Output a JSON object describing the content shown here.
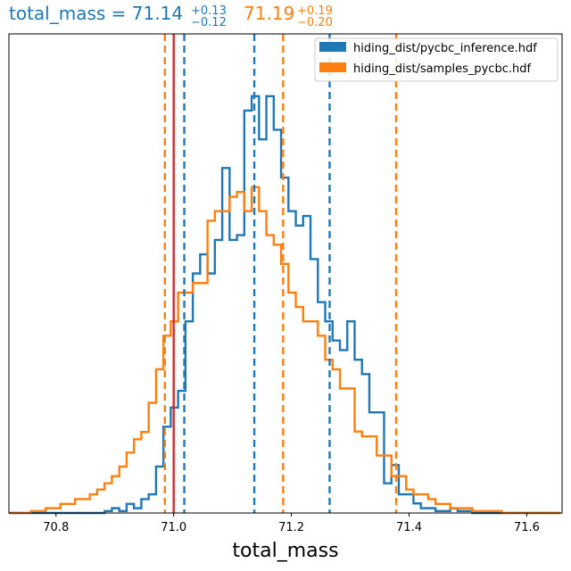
{
  "chart_data": {
    "type": "step-histogram",
    "title": {
      "series1": {
        "text": "total_mass = 71.14",
        "plus": "+0.13",
        "minus": "−0.12",
        "color": "#1f77b4"
      },
      "series2": {
        "text": "71.19",
        "plus": "+0.19",
        "minus": "−0.20",
        "color": "#ff7f0e"
      }
    },
    "xlabel": "total_mass",
    "xlim": [
      70.72,
      71.66
    ],
    "ylim": [
      0,
      100
    ],
    "xticks": [
      "70.8",
      "71.0",
      "71.2",
      "71.4",
      "71.6"
    ],
    "legend_position": "top-right",
    "bin_start": 70.72,
    "bin_width": 0.0125,
    "series": [
      {
        "name": "hiding_dist/pycbc_inference.hdf",
        "color": "#1f77b4",
        "values": [
          0,
          0,
          0,
          0,
          0,
          0,
          0,
          0,
          0,
          0,
          0,
          0,
          0,
          0.4,
          1,
          0.4,
          1.9,
          1,
          2.9,
          3.9,
          9.7,
          18,
          22,
          25.5,
          40,
          50,
          54,
          50,
          57,
          72,
          57,
          58,
          84,
          87,
          78,
          87,
          80,
          70,
          63,
          60,
          62,
          53,
          44,
          40,
          36,
          34,
          40,
          32,
          29,
          21,
          21,
          6.2,
          10,
          3.9,
          3.9,
          2,
          1,
          1,
          0.4,
          0.4,
          1,
          0.4,
          0.4,
          0,
          0,
          0,
          0,
          0,
          0,
          0,
          0,
          0,
          0,
          0,
          0
        ]
      },
      {
        "name": "hiding_dist/samples_pycbc.hdf",
        "color": "#ff7f0e",
        "values": [
          0,
          0,
          0,
          0.4,
          0.4,
          1,
          1,
          1.9,
          1.9,
          2.9,
          2.9,
          3.9,
          4.9,
          6.2,
          7.7,
          9.7,
          12.6,
          15.4,
          16.9,
          23,
          30,
          37,
          40,
          46,
          46,
          48,
          48,
          61,
          63,
          63,
          66,
          67,
          63,
          68,
          63,
          58,
          56,
          52,
          46,
          43,
          40,
          40,
          37,
          32,
          30,
          26,
          26,
          17,
          16,
          16,
          12,
          12,
          7.7,
          7.7,
          4.9,
          3.9,
          3.9,
          2.9,
          1.9,
          1.9,
          1,
          1,
          1,
          0.4,
          0.4,
          0.4,
          0.4,
          0,
          0,
          0,
          0,
          0,
          0,
          0,
          0
        ]
      }
    ],
    "vlines": [
      {
        "x": 70.985,
        "color": "#ff7f0e",
        "style": "dashed"
      },
      {
        "x": 71.0,
        "color": "#d62728",
        "style": "solid"
      },
      {
        "x": 71.018,
        "color": "#1f77b4",
        "style": "dashed"
      },
      {
        "x": 71.137,
        "color": "#1f77b4",
        "style": "dashed"
      },
      {
        "x": 71.186,
        "color": "#ff7f0e",
        "style": "dashed"
      },
      {
        "x": 71.265,
        "color": "#1f77b4",
        "style": "dashed"
      },
      {
        "x": 71.378,
        "color": "#ff7f0e",
        "style": "dashed"
      }
    ]
  }
}
